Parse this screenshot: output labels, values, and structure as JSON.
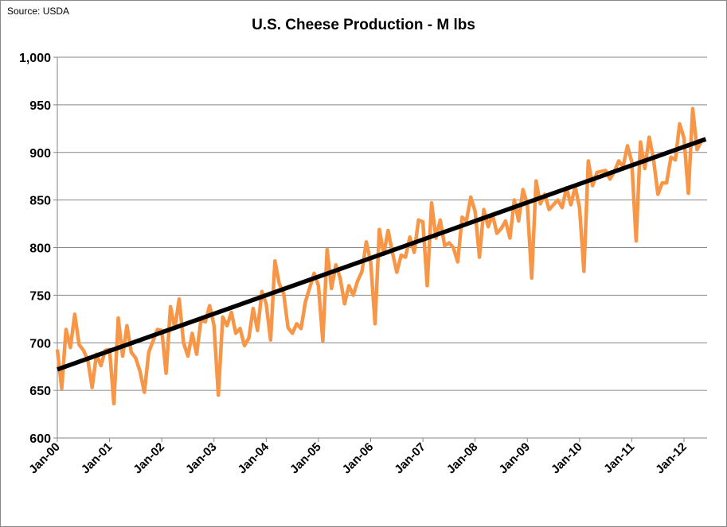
{
  "chart_data": {
    "type": "line",
    "title": "U.S. Cheese Production - M lbs",
    "source": "Source: USDA",
    "xlabel": "",
    "ylabel": "",
    "ylim": [
      600,
      1000
    ],
    "yticks": [
      "600",
      "650",
      "700",
      "750",
      "800",
      "850",
      "900",
      "950",
      "1,000"
    ],
    "xticks": [
      "Jan-00",
      "Jan-01",
      "Jan-02",
      "Jan-03",
      "Jan-04",
      "Jan-05",
      "Jan-06",
      "Jan-07",
      "Jan-08",
      "Jan-09",
      "Jan-10",
      "Jan-11",
      "Jan-12"
    ],
    "x_start": "Jan-00",
    "x_end": "Jun-12",
    "grid": "horizontal",
    "series": [
      {
        "color": "#F79646",
        "kind": "monthly",
        "values": [
          693,
          652,
          714,
          695,
          730,
          698,
          692,
          682,
          653,
          688,
          676,
          692,
          693,
          636,
          726,
          686,
          718,
          690,
          684,
          670,
          648,
          690,
          702,
          714,
          713,
          668,
          738,
          715,
          746,
          700,
          686,
          710,
          688,
          724,
          722,
          739,
          718,
          645,
          727,
          718,
          732,
          710,
          715,
          697,
          705,
          736,
          713,
          754,
          741,
          703,
          786,
          762,
          752,
          716,
          710,
          720,
          715,
          743,
          758,
          773,
          760,
          702,
          798,
          757,
          782,
          768,
          741,
          760,
          750,
          765,
          775,
          806,
          785,
          720,
          819,
          793,
          818,
          795,
          774,
          792,
          790,
          811,
          795,
          829,
          827,
          760,
          847,
          810,
          829,
          802,
          805,
          800,
          785,
          832,
          828,
          853,
          838,
          790,
          840,
          822,
          835,
          815,
          820,
          828,
          810,
          850,
          828,
          861,
          845,
          768,
          870,
          846,
          856,
          840,
          845,
          850,
          842,
          863,
          845,
          864,
          842,
          775,
          891,
          865,
          879,
          880,
          881,
          872,
          880,
          891,
          885,
          907,
          890,
          807,
          911,
          883,
          916,
          893,
          856,
          868,
          868,
          895,
          892,
          930,
          915,
          857,
          946,
          903,
          912,
          913
        ]
      },
      {
        "color": "#000000",
        "kind": "trend",
        "values": [
          672,
          914
        ]
      }
    ]
  }
}
